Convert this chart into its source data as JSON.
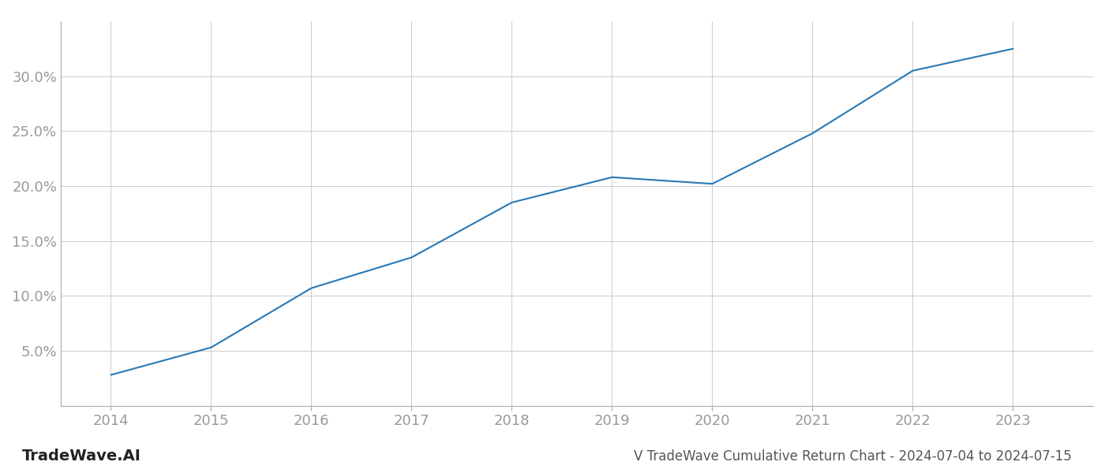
{
  "x_values": [
    2014,
    2015,
    2016,
    2017,
    2018,
    2019,
    2020,
    2021,
    2022,
    2023
  ],
  "y_values": [
    2.8,
    5.3,
    10.7,
    13.5,
    18.5,
    20.8,
    20.2,
    24.8,
    30.5,
    32.5
  ],
  "line_color": "#2878b5",
  "line_width": 1.5,
  "title": "V TradeWave Cumulative Return Chart - 2024-07-04 to 2024-07-15",
  "watermark": "TradeWave.AI",
  "xlabel": "",
  "ylabel": "",
  "ylim": [
    0,
    35
  ],
  "xlim": [
    2013.5,
    2023.8
  ],
  "yticks": [
    5.0,
    10.0,
    15.0,
    20.0,
    25.0,
    30.0
  ],
  "xticks": [
    2014,
    2015,
    2016,
    2017,
    2018,
    2019,
    2020,
    2021,
    2022,
    2023
  ],
  "background_color": "#ffffff",
  "grid_color": "#cccccc",
  "tick_label_color": "#999999",
  "title_color": "#555555",
  "watermark_color": "#222222",
  "title_fontsize": 12,
  "watermark_fontsize": 14,
  "tick_fontsize": 13
}
